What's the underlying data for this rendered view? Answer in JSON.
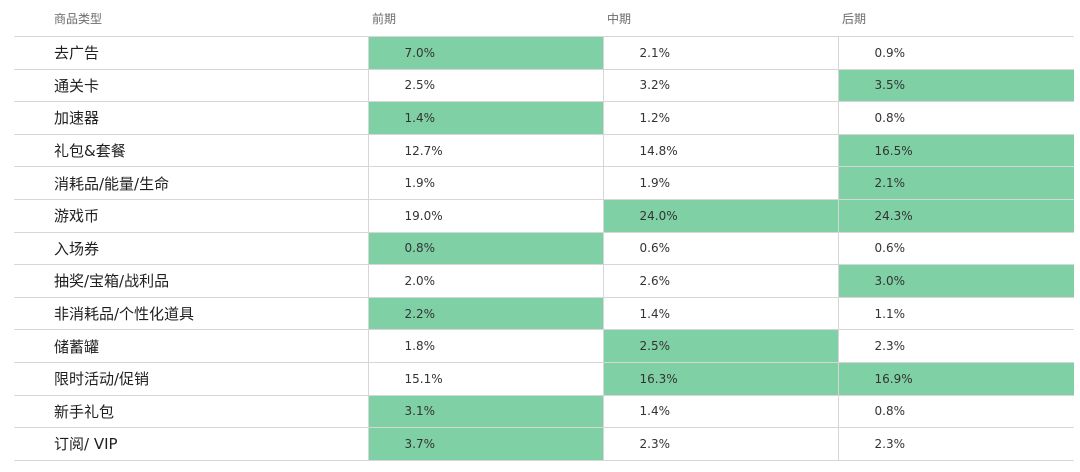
{
  "table": {
    "columns": [
      "商品类型",
      "前期",
      "中期",
      "后期"
    ],
    "rows": [
      {
        "name": "去广告",
        "values": [
          "7.0%",
          "2.1%",
          "0.9%"
        ],
        "highlight": [
          true,
          false,
          false
        ]
      },
      {
        "name": "通关卡",
        "values": [
          "2.5%",
          "3.2%",
          "3.5%"
        ],
        "highlight": [
          false,
          false,
          true
        ]
      },
      {
        "name": "加速器",
        "values": [
          "1.4%",
          "1.2%",
          "0.8%"
        ],
        "highlight": [
          true,
          false,
          false
        ]
      },
      {
        "name": "礼包&套餐",
        "values": [
          "12.7%",
          "14.8%",
          "16.5%"
        ],
        "highlight": [
          false,
          false,
          true
        ]
      },
      {
        "name": "消耗品/能量/生命",
        "values": [
          "1.9%",
          "1.9%",
          "2.1%"
        ],
        "highlight": [
          false,
          false,
          true
        ]
      },
      {
        "name": "游戏币",
        "values": [
          "19.0%",
          "24.0%",
          "24.3%"
        ],
        "highlight": [
          false,
          true,
          true
        ]
      },
      {
        "name": "入场券",
        "values": [
          "0.8%",
          "0.6%",
          "0.6%"
        ],
        "highlight": [
          true,
          false,
          false
        ]
      },
      {
        "name": "抽奖/宝箱/战利品",
        "values": [
          "2.0%",
          "2.6%",
          "3.0%"
        ],
        "highlight": [
          false,
          false,
          true
        ]
      },
      {
        "name": "非消耗品/个性化道具",
        "values": [
          "2.2%",
          "1.4%",
          "1.1%"
        ],
        "highlight": [
          true,
          false,
          false
        ]
      },
      {
        "name": "储蓄罐",
        "values": [
          "1.8%",
          "2.5%",
          "2.3%"
        ],
        "highlight": [
          false,
          true,
          false
        ]
      },
      {
        "name": "限时活动/促销",
        "values": [
          "15.1%",
          "16.3%",
          "16.9%"
        ],
        "highlight": [
          false,
          true,
          true
        ]
      },
      {
        "name": "新手礼包",
        "values": [
          "3.1%",
          "1.4%",
          "0.8%"
        ],
        "highlight": [
          true,
          false,
          false
        ]
      },
      {
        "name": "订阅/ VIP",
        "values": [
          "3.7%",
          "2.3%",
          "2.3%"
        ],
        "highlight": [
          true,
          false,
          false
        ]
      }
    ]
  },
  "colors": {
    "highlight": "#80d0a5",
    "grid": "#d6d6d6",
    "header_text": "#6b6b6b"
  }
}
